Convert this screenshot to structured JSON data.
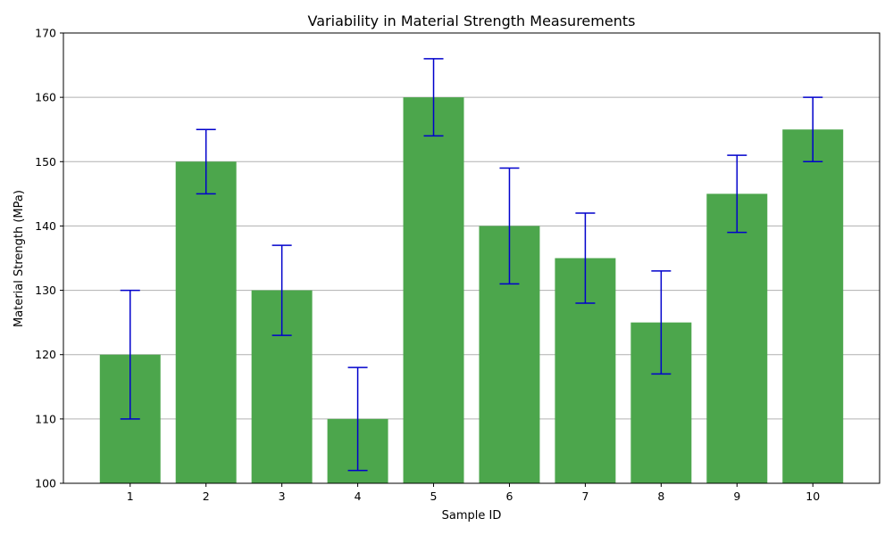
{
  "chart_data": {
    "type": "bar",
    "title": "Variability in Material Strength Measurements",
    "xlabel": "Sample ID",
    "ylabel": "Material Strength (MPa)",
    "categories": [
      "1",
      "2",
      "3",
      "4",
      "5",
      "6",
      "7",
      "8",
      "9",
      "10"
    ],
    "values": [
      120,
      150,
      130,
      110,
      160,
      140,
      135,
      125,
      145,
      155
    ],
    "errors": [
      10,
      5,
      7,
      8,
      6,
      9,
      7,
      8,
      6,
      5
    ],
    "ylim": [
      100,
      170
    ],
    "yticks": [
      100,
      110,
      120,
      130,
      140,
      150,
      160,
      170
    ],
    "grid": "y-major",
    "colors": {
      "bar": "#4ca64c",
      "error_bar": "#0000cc",
      "grid": "#b0b0b0",
      "axis": "#000000"
    }
  }
}
